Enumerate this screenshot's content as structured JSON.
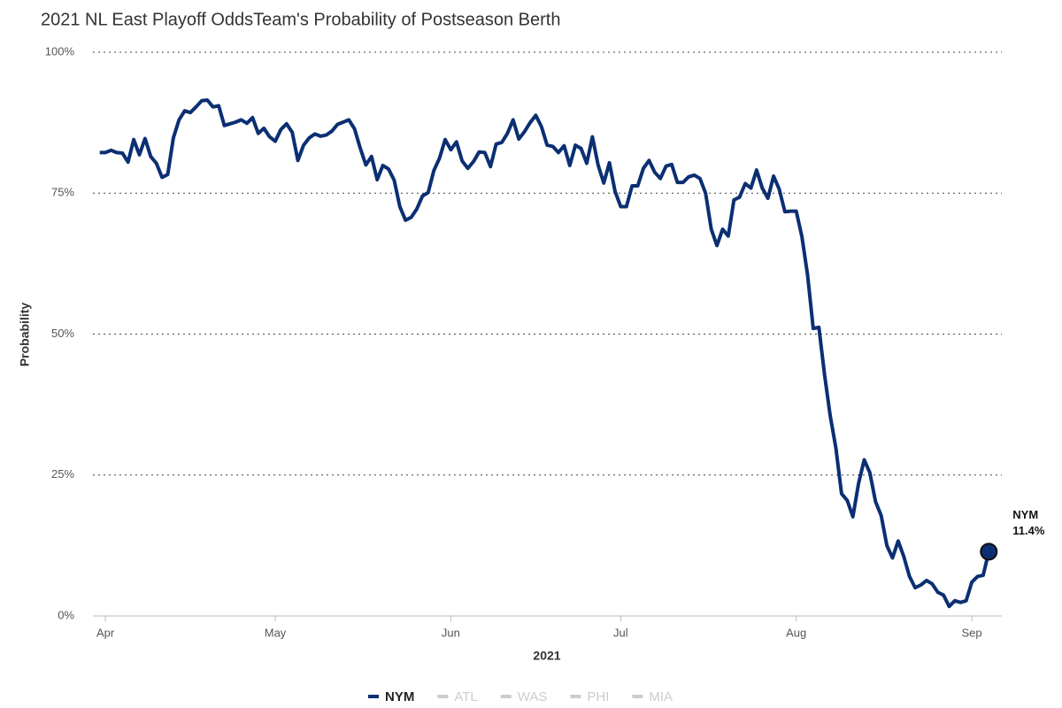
{
  "chart_data": {
    "type": "line",
    "title": "2021 NL East Playoff OddsTeam's Probability of Postseason Berth",
    "x_label": "2021",
    "y_label": "Probability",
    "xlim": [
      88.8,
      249.3
    ],
    "xticks": [
      {
        "value": 91,
        "label": "Apr"
      },
      {
        "value": 121,
        "label": "May"
      },
      {
        "value": 152,
        "label": "Jun"
      },
      {
        "value": 182,
        "label": "Jul"
      },
      {
        "value": 213,
        "label": "Aug"
      },
      {
        "value": 244,
        "label": "Sep"
      }
    ],
    "ylim": [
      0,
      100
    ],
    "yticks": [
      {
        "value": 0,
        "label": "0%"
      },
      {
        "value": 25,
        "label": "25%"
      },
      {
        "value": 50,
        "label": "50%"
      },
      {
        "value": 75,
        "label": "75%"
      },
      {
        "value": 100,
        "label": "100%"
      }
    ],
    "grid": true,
    "x": [
      90,
      91,
      92,
      93,
      94,
      95,
      96,
      97,
      98,
      99,
      100,
      101,
      102,
      103,
      104,
      105,
      106,
      107,
      108,
      109,
      110,
      111,
      112,
      113,
      114,
      115,
      116,
      117,
      118,
      119,
      120,
      121,
      122,
      123,
      124,
      125,
      126,
      127,
      128,
      129,
      130,
      131,
      132,
      133,
      134,
      135,
      136,
      137,
      138,
      139,
      140,
      141,
      142,
      143,
      144,
      145,
      146,
      147,
      148,
      149,
      150,
      151,
      152,
      153,
      154,
      155,
      156,
      157,
      158,
      159,
      160,
      161,
      162,
      163,
      164,
      165,
      166,
      167,
      168,
      169,
      170,
      171,
      172,
      173,
      174,
      175,
      176,
      177,
      178,
      179,
      180,
      181,
      182,
      183,
      184,
      185,
      186,
      187,
      188,
      189,
      190,
      191,
      192,
      193,
      194,
      195,
      196,
      197,
      198,
      199,
      200,
      201,
      202,
      203,
      204,
      205,
      206,
      207,
      208,
      209,
      210,
      211,
      212,
      213,
      214,
      215,
      216,
      217,
      218,
      219,
      220,
      221,
      222,
      223,
      224,
      225,
      226,
      227,
      228,
      229,
      230,
      231,
      232,
      233,
      234,
      235,
      236,
      237,
      238,
      239,
      240,
      241,
      242,
      243,
      244,
      245,
      246,
      247
    ],
    "series": [
      {
        "name": "NYM",
        "color": "#0b2f72",
        "values": [
          82.2,
          82.2,
          82.6,
          82.2,
          82.1,
          80.5,
          84.5,
          81.8,
          84.7,
          81.5,
          80.3,
          77.8,
          78.3,
          84.8,
          88,
          89.6,
          89.3,
          90.3,
          91.4,
          91.5,
          90.3,
          90.5,
          87,
          87.3,
          87.6,
          88,
          87.4,
          88.4,
          85.6,
          86.5,
          85,
          84.2,
          86.3,
          87.3,
          85.8,
          80.8,
          83.5,
          84.8,
          85.5,
          85.1,
          85.3,
          86,
          87.2,
          87.6,
          88,
          86.4,
          83,
          80,
          81.5,
          77.4,
          79.9,
          79.3,
          77.3,
          72.6,
          70.2,
          70.7,
          72.2,
          74.5,
          75.1,
          79,
          81.2,
          84.5,
          82.7,
          84.1,
          80.7,
          79.4,
          80.6,
          82.3,
          82.2,
          79.7,
          83.7,
          84,
          85.6,
          88,
          84.6,
          85.9,
          87.5,
          88.8,
          86.8,
          83.5,
          83.3,
          82.2,
          83.4,
          79.9,
          83.5,
          82.9,
          80.3,
          85,
          80,
          76.8,
          80.4,
          75.3,
          72.6,
          72.6,
          76.3,
          76.3,
          79.4,
          80.8,
          78.7,
          77.6,
          79.8,
          80.1,
          76.9,
          76.9,
          77.9,
          78.2,
          77.6,
          75,
          68.6,
          65.7,
          68.6,
          67.4,
          73.8,
          74.3,
          76.7,
          75.9,
          79.1,
          75.9,
          74.1,
          78,
          75.7,
          71.7,
          71.8,
          71.8,
          67.3,
          60.5,
          51,
          51.2,
          42.8,
          35.5,
          29.8,
          21.7,
          20.5,
          17.6,
          23.5,
          27.7,
          25.4,
          20.3,
          17.8,
          12.5,
          10.3,
          13.3,
          10.5,
          7,
          5,
          5.5,
          6.3,
          5.7,
          4.2,
          3.7,
          1.7,
          2.7,
          2.4,
          2.7,
          6,
          7,
          7.2,
          11.4
        ],
        "value_labels": [
          null,
          null,
          null,
          null,
          null,
          null,
          null,
          null,
          null,
          null,
          null,
          null,
          null,
          null,
          null,
          null,
          null,
          null,
          null,
          null,
          null,
          null,
          null,
          null,
          null,
          null,
          null,
          null,
          null,
          null,
          null,
          null,
          null,
          null,
          null,
          null,
          null,
          null,
          null,
          null,
          null,
          null,
          null,
          null,
          null,
          null,
          null,
          null,
          null,
          null,
          null,
          null,
          null,
          null,
          null,
          null,
          null,
          null,
          null,
          null,
          null,
          null,
          null,
          null,
          null,
          null,
          null,
          null,
          null,
          null,
          null,
          null,
          null,
          null,
          null,
          null,
          null,
          null,
          null,
          null,
          null,
          null,
          null,
          null,
          null,
          null,
          null,
          null,
          null,
          null,
          null,
          null,
          null,
          null,
          null,
          null,
          null,
          null,
          null,
          null,
          null,
          null,
          null,
          null,
          null,
          null,
          null,
          null,
          null,
          null,
          null,
          null,
          null,
          null,
          null,
          null,
          null,
          null,
          null,
          null,
          null,
          null,
          null,
          null,
          null,
          null,
          null,
          null,
          null,
          null,
          null,
          null,
          null,
          null,
          null,
          null,
          null,
          null,
          null,
          null,
          null,
          null,
          null,
          null,
          null,
          null,
          null,
          null,
          null,
          null,
          null,
          null,
          null,
          null,
          null,
          null,
          null,
          "11.4%"
        ]
      }
    ],
    "inactive_series": [
      {
        "name": "ATL",
        "color": "#cccccc"
      },
      {
        "name": "WAS",
        "color": "#cccccc"
      },
      {
        "name": "PHI",
        "color": "#cccccc"
      },
      {
        "name": "MIA",
        "color": "#cccccc"
      }
    ]
  }
}
